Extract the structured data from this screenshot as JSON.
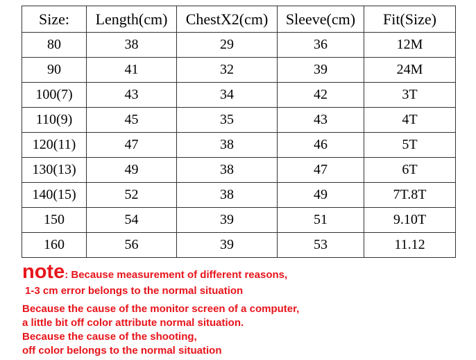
{
  "table": {
    "header": [
      "Size:",
      "Length(cm)",
      "ChestX2(cm)",
      "Sleeve(cm)",
      "Fit(Size)"
    ],
    "rows": [
      [
        "80",
        "38",
        "29",
        "36",
        "12M"
      ],
      [
        "90",
        "41",
        "32",
        "39",
        "24M"
      ],
      [
        "100(7)",
        "43",
        "34",
        "42",
        "3T"
      ],
      [
        "110(9)",
        "45",
        "35",
        "43",
        "4T"
      ],
      [
        "120(11)",
        "47",
        "38",
        "46",
        "5T"
      ],
      [
        "130(13)",
        "49",
        "38",
        "47",
        "6T"
      ],
      [
        "140(15)",
        "52",
        "38",
        "49",
        "7T.8T"
      ],
      [
        "150",
        "54",
        "39",
        "51",
        "9.10T"
      ],
      [
        "160",
        "56",
        "39",
        "53",
        "11.12"
      ]
    ]
  },
  "note": {
    "label": "note",
    "first": ": Because measurement of different reasons,",
    "lines": [
      "1-3 cm error belongs to the normal situation",
      "Because the cause of the monitor screen of a computer,",
      "a little bit off color attribute normal situation.",
      "Because the cause of the shooting,",
      "off color belongs to the normal situation"
    ]
  }
}
